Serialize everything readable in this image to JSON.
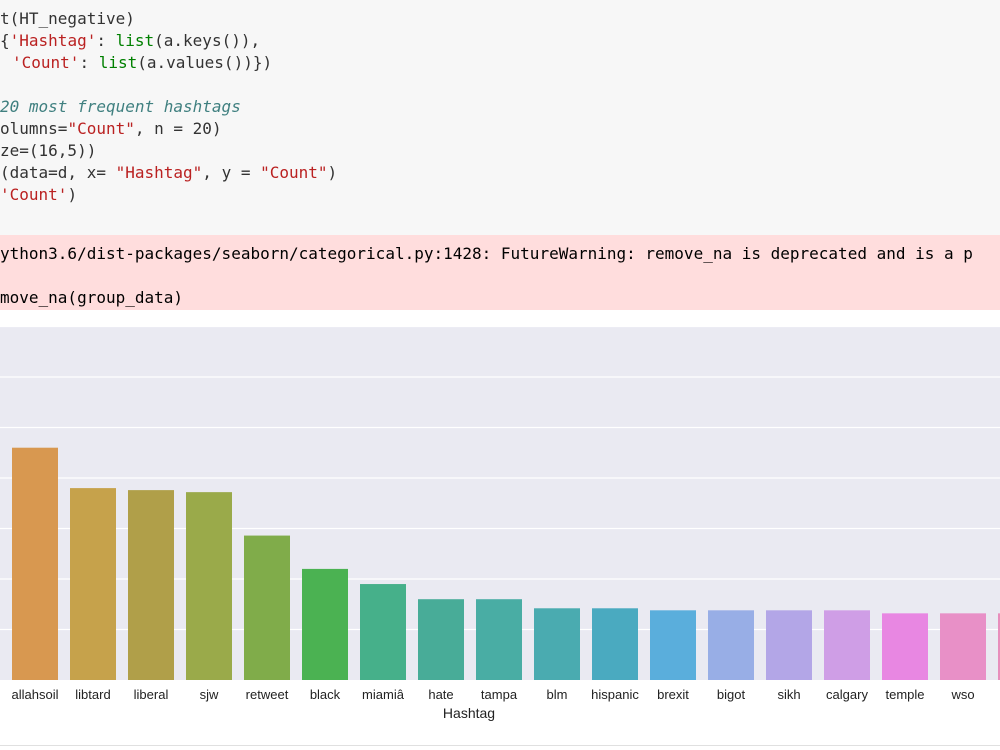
{
  "code": {
    "line1_a": "t(HT_negative)",
    "line2_a": "{",
    "line2_str": "'Hashtag'",
    "line2_b": ": ",
    "line2_fn": "list",
    "line2_c": "(a.keys()),",
    "line3_str": "'Count'",
    "line3_b": ": ",
    "line3_fn": "list",
    "line3_c": "(a.values())})",
    "line4_comment": "20 most frequent hashtags",
    "line5_a": "olumns=",
    "line5_str": "\"Count\"",
    "line5_b": ", n = 20)",
    "line6_a": "ze=(16,5))",
    "line7_a": "(data=d, x= ",
    "line7_str1": "\"Hashtag\"",
    "line7_b": ", y = ",
    "line7_str2": "\"Count\"",
    "line7_c": ")",
    "line8_str": "'Count'",
    "line8_c": ")"
  },
  "warning": {
    "line1": "ython3.6/dist-packages/seaborn/categorical.py:1428: FutureWarning: remove_na is deprecated and is a p",
    "line2": "move_na(group_data)"
  },
  "chart_data": {
    "type": "bar",
    "xlabel": "Hashtag",
    "ylabel": "",
    "ylim": [
      0,
      35
    ],
    "grid": true,
    "categories": [
      "allahsoil",
      "libtard",
      "liberal",
      "sjw",
      "retweet",
      "black",
      "miamiâ",
      "hate",
      "tampa",
      "blm",
      "hispanic",
      "brexit",
      "bigot",
      "sikh",
      "calgary",
      "temple",
      "wso",
      ""
    ],
    "values": [
      23,
      19,
      18.8,
      18.6,
      14.3,
      11,
      9.5,
      8,
      8,
      7.1,
      7.1,
      6.9,
      6.9,
      6.9,
      6.9,
      6.6,
      6.6,
      6.6
    ],
    "colors": [
      "#d89850",
      "#c6a24b",
      "#b09f49",
      "#9aaa4a",
      "#80ac4a",
      "#4bb252",
      "#46b08a",
      "#48ac98",
      "#49ada4",
      "#4aabb0",
      "#4aaac0",
      "#5aaedc",
      "#98aee6",
      "#b3a6e7",
      "#cf9ee6",
      "#e887e2",
      "#e890c7",
      "#e88ebc"
    ]
  }
}
